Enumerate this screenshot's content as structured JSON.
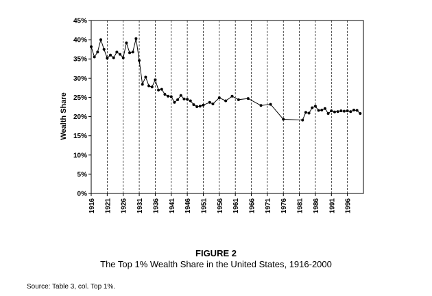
{
  "figure": {
    "title": "FIGURE 2",
    "subtitle": "The Top 1% Wealth Share in the United States, 1916-2000",
    "source": "Source: Table 3, col. Top 1%."
  },
  "chart_data": {
    "type": "line",
    "title": "",
    "xlabel": "",
    "ylabel": "Wealth Share",
    "x_tick_labels": [
      "1916",
      "1921",
      "1926",
      "1931",
      "1936",
      "1941",
      "1946",
      "1951",
      "1956",
      "1961",
      "1966",
      "1971",
      "1976",
      "1981",
      "1986",
      "1991",
      "1996"
    ],
    "y_tick_labels": [
      "0%",
      "5%",
      "10%",
      "15%",
      "20%",
      "25%",
      "30%",
      "35%",
      "40%",
      "45%"
    ],
    "xlim": [
      1916,
      2001
    ],
    "ylim": [
      0,
      45
    ],
    "grid": "vertical dashed at x ticks",
    "series": [
      {
        "x": [
          1916,
          1917,
          1918,
          1919,
          1920,
          1921,
          1922,
          1923,
          1924,
          1925,
          1926,
          1927,
          1928,
          1929,
          1930,
          1931,
          1932,
          1933,
          1934,
          1935,
          1936,
          1937,
          1938,
          1939,
          1940,
          1941,
          1942,
          1943,
          1944,
          1945,
          1946,
          1947,
          1948,
          1949,
          1950,
          1951,
          1953,
          1954,
          1956,
          1958,
          1960,
          1962,
          1965,
          1969,
          1972,
          1976,
          1982,
          1983,
          1984,
          1985,
          1986,
          1987,
          1988,
          1989,
          1990,
          1991,
          1992,
          1993,
          1994,
          1995,
          1996,
          1997,
          1998,
          1999,
          2000
        ],
        "y": [
          38.2,
          35.5,
          36.8,
          40.0,
          37.5,
          35.2,
          36.0,
          35.3,
          36.8,
          36.2,
          35.3,
          39.2,
          36.6,
          36.8,
          40.3,
          34.6,
          28.4,
          30.3,
          28.0,
          27.7,
          29.6,
          26.9,
          27.1,
          25.8,
          25.3,
          25.2,
          23.7,
          24.4,
          25.5,
          24.6,
          24.5,
          24.1,
          23.1,
          22.6,
          22.7,
          23.0,
          23.7,
          23.3,
          24.9,
          24.1,
          25.3,
          24.4,
          24.7,
          22.9,
          23.2,
          19.3,
          19.1,
          21.1,
          20.9,
          22.3,
          22.7,
          21.6,
          21.7,
          22.1,
          20.8,
          21.5,
          21.2,
          21.3,
          21.5,
          21.4,
          21.5,
          21.3,
          21.7,
          21.6,
          20.8
        ]
      }
    ]
  }
}
